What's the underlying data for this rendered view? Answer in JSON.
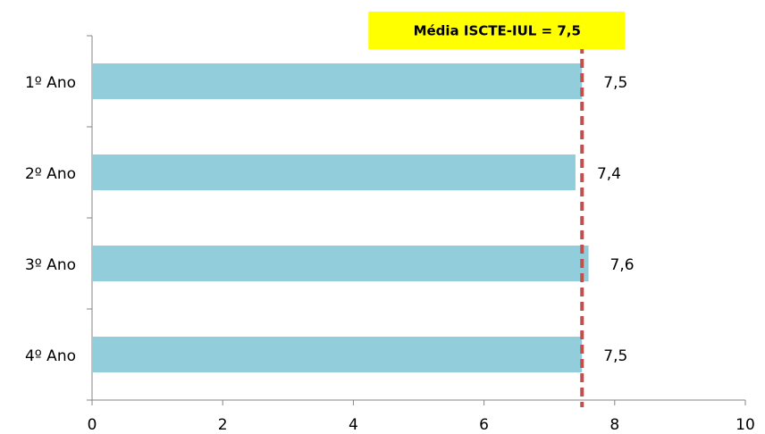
{
  "chart_data": {
    "type": "barh",
    "categories": [
      "1º Ano",
      "2º Ano",
      "3º Ano",
      "4º Ano"
    ],
    "values": [
      7.5,
      7.4,
      7.6,
      7.5
    ],
    "value_labels": [
      "7,5",
      "7,4",
      "7,6",
      "7,5"
    ],
    "color": "#92cddc",
    "xlim": [
      0,
      10
    ],
    "xticks": [
      0,
      2,
      4,
      6,
      8,
      10
    ],
    "reference_line": {
      "value": 7.5,
      "label": "Média ISCTE-IUL = 7,5",
      "color": "#c0504d",
      "label_background": "#ffff00"
    }
  }
}
